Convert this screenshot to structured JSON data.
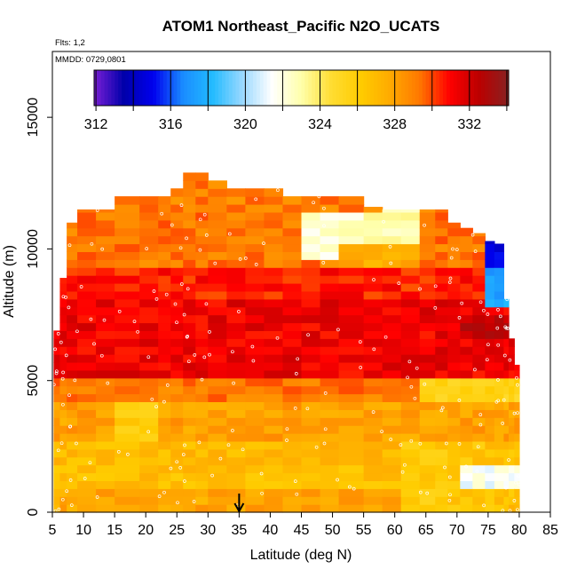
{
  "chart_data": {
    "type": "heatmap",
    "title": "ATOM1 Northeast_Pacific N2O_UCATS",
    "flights_label": "Flts: 1,2",
    "dates_label": "MMDD: 0729,0801",
    "xlabel": "Latitude (deg N)",
    "ylabel": "Altitude (m)",
    "xlim": [
      5,
      85
    ],
    "ylim": [
      0,
      17500
    ],
    "x_ticks": [
      "5",
      "10",
      "15",
      "20",
      "25",
      "30",
      "35",
      "40",
      "45",
      "50",
      "55",
      "60",
      "65",
      "70",
      "75",
      "80",
      "85"
    ],
    "y_ticks": [
      "0",
      "5000",
      "10000",
      "15000"
    ],
    "colorbar": {
      "range": [
        311.9,
        334.1
      ],
      "tick_labels": [
        "312",
        "316",
        "320",
        "324",
        "328",
        "332"
      ],
      "colors": [
        "#7a1fd6",
        "#0000aa",
        "#0000ee",
        "#1a8cff",
        "#22bbff",
        "#99d8ff",
        "#ffffff",
        "#ffffaa",
        "#ffdd33",
        "#ffcc00",
        "#ffaa00",
        "#ff7700",
        "#ff0000",
        "#bb0000",
        "#882222"
      ]
    },
    "marker_latitude": 35,
    "columns": [
      {
        "lat": 5.2,
        "top": 6900
      },
      {
        "lat": 6.2,
        "top": 8900
      },
      {
        "lat": 7.3,
        "top": 11000
      },
      {
        "lat": 9,
        "top": 11500
      },
      {
        "lat": 12,
        "top": 11500
      },
      {
        "lat": 15,
        "top": 12000
      },
      {
        "lat": 19,
        "top": 12000
      },
      {
        "lat": 22,
        "top": 12000
      },
      {
        "lat": 24,
        "top": 12300
      },
      {
        "lat": 26,
        "top": 12900
      },
      {
        "lat": 28,
        "top": 12900
      },
      {
        "lat": 30,
        "top": 12600
      },
      {
        "lat": 33,
        "top": 12300
      },
      {
        "lat": 36,
        "top": 12300
      },
      {
        "lat": 39,
        "top": 12300
      },
      {
        "lat": 42,
        "top": 12000
      },
      {
        "lat": 45,
        "top": 12000
      },
      {
        "lat": 48,
        "top": 12000
      },
      {
        "lat": 51,
        "top": 12000
      },
      {
        "lat": 55,
        "top": 11600
      },
      {
        "lat": 58,
        "top": 11500
      },
      {
        "lat": 61,
        "top": 11500
      },
      {
        "lat": 64,
        "top": 11500
      },
      {
        "lat": 66.5,
        "top": 11500
      },
      {
        "lat": 68.5,
        "top": 11000
      },
      {
        "lat": 70.5,
        "top": 10800
      },
      {
        "lat": 72.5,
        "top": 10600
      },
      {
        "lat": 74.5,
        "top": 10300
      },
      {
        "lat": 76,
        "top": 10200
      },
      {
        "lat": 77.5,
        "top": 8100
      },
      {
        "lat": 78.3,
        "top": 6600
      },
      {
        "lat": 79.2,
        "top": 5600
      },
      {
        "lat": 80,
        "top": 0
      }
    ]
  }
}
